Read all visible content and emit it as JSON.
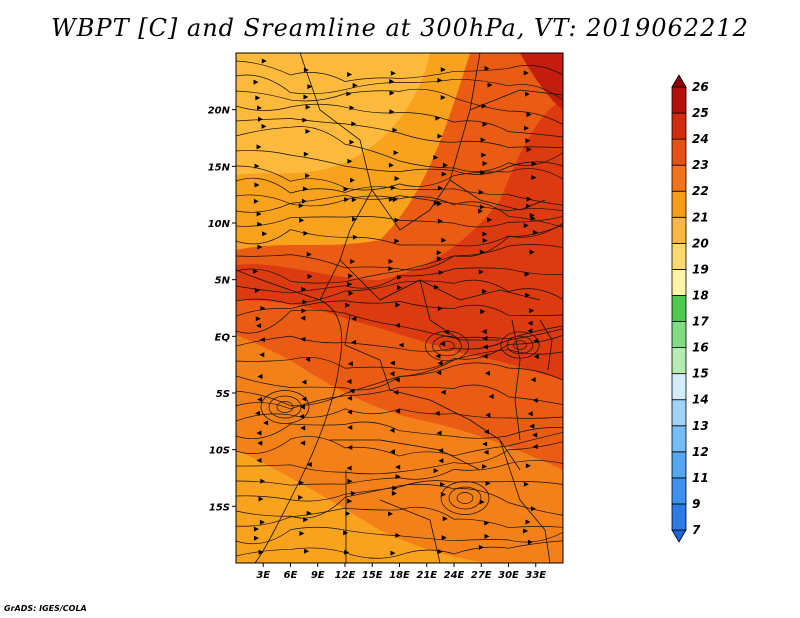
{
  "title": "WBPT [C] and Sreamline at 300hPa, VT: 2019062212",
  "credit": "GrADS: IGES/COLA",
  "map": {
    "lon_range": [
      0,
      36
    ],
    "lat_range": [
      -20,
      25
    ],
    "lat_ticks": [
      {
        "value": 20,
        "label": "20N"
      },
      {
        "value": 15,
        "label": "15N"
      },
      {
        "value": 10,
        "label": "10N"
      },
      {
        "value": 5,
        "label": "5N"
      },
      {
        "value": 0,
        "label": "EQ"
      },
      {
        "value": -5,
        "label": "5S"
      },
      {
        "value": -10,
        "label": "10S"
      },
      {
        "value": -15,
        "label": "15S"
      }
    ],
    "lon_ticks": [
      {
        "value": 3,
        "label": "3E"
      },
      {
        "value": 6,
        "label": "6E"
      },
      {
        "value": 9,
        "label": "9E"
      },
      {
        "value": 12,
        "label": "12E"
      },
      {
        "value": 15,
        "label": "15E"
      },
      {
        "value": 18,
        "label": "18E"
      },
      {
        "value": 21,
        "label": "21E"
      },
      {
        "value": 24,
        "label": "24E"
      },
      {
        "value": 27,
        "label": "27E"
      },
      {
        "value": 30,
        "label": "30E"
      },
      {
        "value": 33,
        "label": "33E"
      }
    ],
    "field_colors": {
      "c20": "#fdba3c",
      "c21": "#f9a21e",
      "c22": "#f4801a",
      "c23": "#ea5c13",
      "c24": "#dc3a10",
      "c25": "#c41d0e"
    }
  },
  "colorbar": {
    "levels": [
      "7",
      "9",
      "11",
      "12",
      "13",
      "14",
      "15",
      "16",
      "17",
      "18",
      "19",
      "20",
      "21",
      "22",
      "23",
      "24",
      "25",
      "26"
    ],
    "colors": [
      "#1e64dc",
      "#2c7ce6",
      "#3e92ee",
      "#56a6f2",
      "#76bcf6",
      "#a0d2fa",
      "#d2ecfc",
      "#b4ecb4",
      "#82dc82",
      "#4ec84e",
      "#fff3a6",
      "#fcd873",
      "#fab843",
      "#f89c1c",
      "#f0741a",
      "#e55014",
      "#d22c0e",
      "#b40f0a",
      "#8c0000"
    ]
  }
}
